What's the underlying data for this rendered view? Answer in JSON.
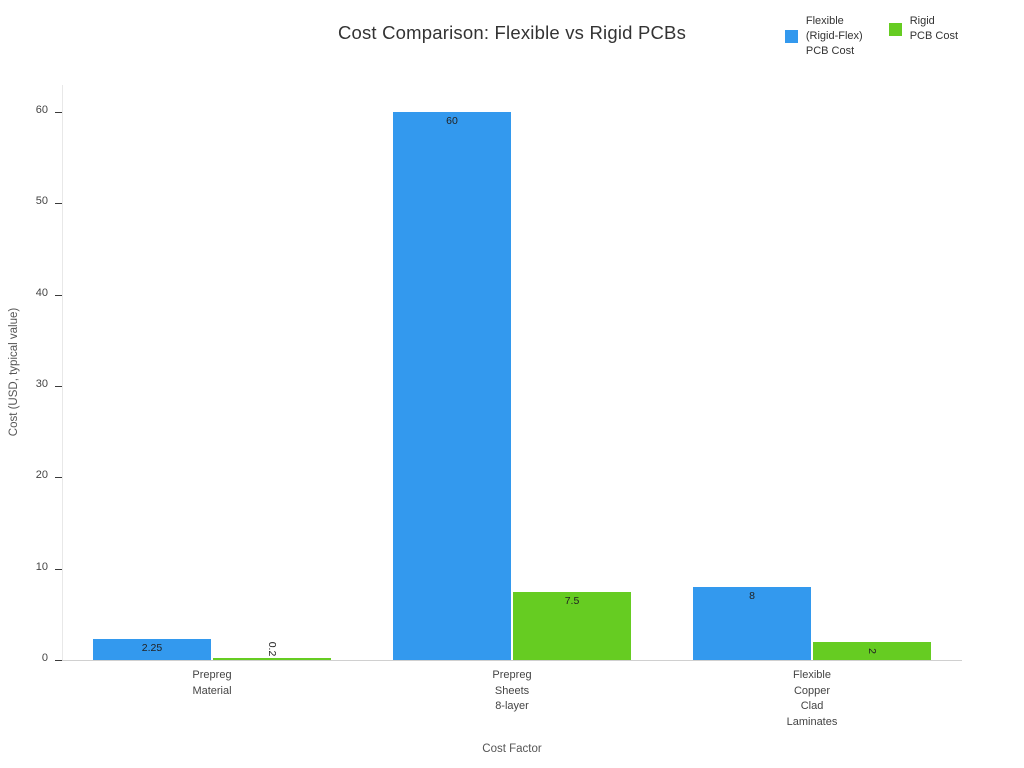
{
  "title": "Cost Comparison: Flexible vs Rigid PCBs",
  "legend": {
    "items": [
      {
        "label_lines": [
          "Flexible",
          "(Rigid-Flex)",
          "PCB Cost"
        ],
        "color": "#3399ee"
      },
      {
        "label_lines": [
          "Rigid",
          "PCB Cost"
        ],
        "color": "#66cc22"
      }
    ]
  },
  "chart_data": {
    "type": "bar",
    "title": "Cost Comparison: Flexible vs Rigid PCBs",
    "xlabel": "Cost Factor",
    "ylabel": "Cost (USD, typical value)",
    "categories": [
      "Prepreg Material",
      "Prepreg Sheets 8-layer",
      "Flexible Copper Clad Laminates"
    ],
    "category_tick_lines": [
      [
        "Prepreg",
        "Material"
      ],
      [
        "Prepreg",
        "Sheets",
        "8-layer"
      ],
      [
        "Flexible",
        "Copper",
        "Clad",
        "Laminates"
      ]
    ],
    "series": [
      {
        "name": "Flexible (Rigid-Flex) PCB Cost",
        "color": "#3399ee",
        "values": [
          2.25,
          60,
          8
        ],
        "labels": [
          "2.25",
          "60",
          "8"
        ]
      },
      {
        "name": "Rigid PCB Cost",
        "color": "#66cc22",
        "values": [
          0.2,
          7.5,
          2
        ],
        "labels": [
          "0.2",
          "7.5",
          "2"
        ]
      }
    ],
    "yticks": [
      0,
      10,
      20,
      30,
      40,
      50,
      60
    ],
    "ylim": [
      0,
      63
    ],
    "grid": false,
    "legend_position": "top-right"
  }
}
